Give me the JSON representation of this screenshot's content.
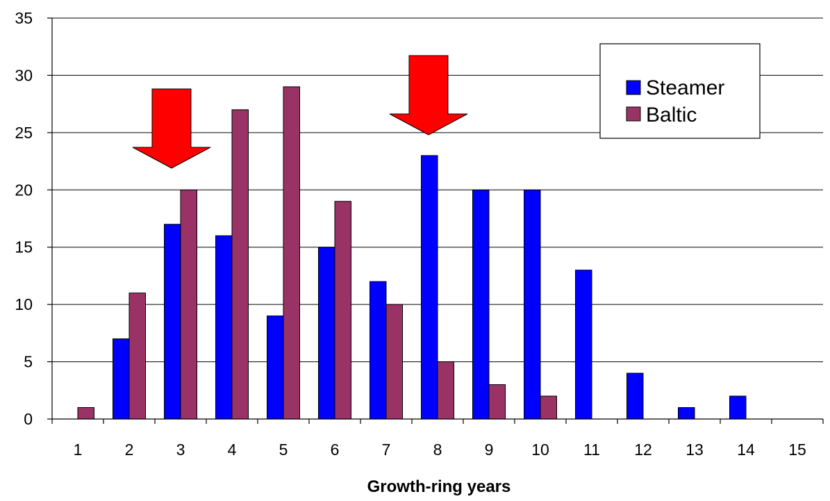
{
  "chart_data": {
    "type": "bar",
    "categories": [
      "1",
      "2",
      "3",
      "4",
      "5",
      "6",
      "7",
      "8",
      "9",
      "10",
      "11",
      "12",
      "13",
      "14",
      "15"
    ],
    "series": [
      {
        "name": "Steamer",
        "color": "#0000ff",
        "values": [
          0,
          7,
          17,
          16,
          9,
          15,
          12,
          23,
          20,
          20,
          13,
          4,
          1,
          2,
          0
        ]
      },
      {
        "name": "Baltic",
        "color": "#993366",
        "values": [
          1,
          11,
          20,
          27,
          29,
          19,
          10,
          5,
          3,
          2,
          0,
          0,
          0,
          0,
          0
        ]
      }
    ],
    "xlabel": "Growth-ring years",
    "ylabel": "",
    "ylim": [
      0,
      35
    ],
    "yticks": [
      0,
      5,
      10,
      15,
      20,
      25,
      30,
      35
    ],
    "grid": true,
    "legend_position": "top-right",
    "annotations": [
      {
        "type": "arrow-down",
        "category": "3",
        "color": "#ff0000"
      },
      {
        "type": "arrow-down",
        "category": "8",
        "color": "#ff0000"
      }
    ]
  }
}
